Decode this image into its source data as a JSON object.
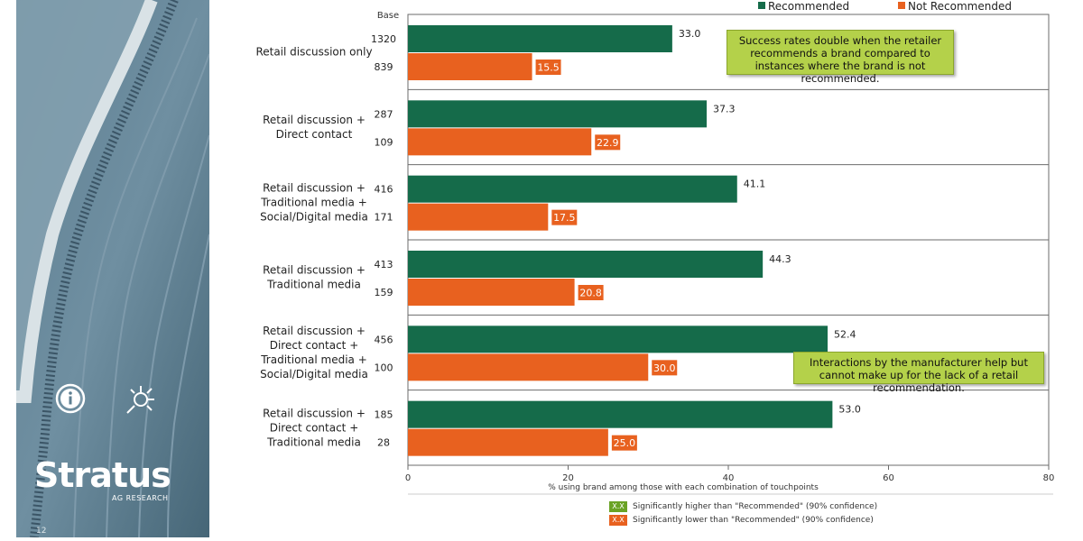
{
  "sidebar": {
    "brand": "Stratus",
    "brand_sub": "AG RESEARCH",
    "page_number": "12",
    "icons": [
      "info-icon",
      "network-icon"
    ]
  },
  "colors": {
    "recommended": "#156b4a",
    "not_recommended": "#e8611f",
    "callout": "#b4d14a"
  },
  "base_header": "Base",
  "callouts": [
    "Success rates double when the retailer recommends a brand compared to instances where the brand is not recommended.",
    "Interactions by the manufacturer help but cannot make up for the lack of a retail recommendation."
  ],
  "significance_legend": [
    {
      "swatch": "X.X",
      "text": "Significantly higher than \"Recommended\" (90% confidence)",
      "color": "#6aa325"
    },
    {
      "swatch": "X.X",
      "text": "Significantly lower than \"Recommended\" (90% confidence)",
      "color": "#e8611f"
    }
  ],
  "chart_data": {
    "type": "bar",
    "orientation": "horizontal",
    "categories": [
      [
        "Retail discussion only"
      ],
      [
        "Retail discussion +",
        "Direct contact"
      ],
      [
        "Retail discussion +",
        "Traditional media +",
        "Social/Digital media"
      ],
      [
        "Retail discussion +",
        "Traditional media"
      ],
      [
        "Retail discussion +",
        "Direct contact +",
        "Traditional media +",
        "Social/Digital media"
      ],
      [
        "Retail discussion +",
        "Direct contact +",
        "Traditional media"
      ]
    ],
    "series": [
      {
        "name": "Recommended",
        "color": "#156b4a",
        "values": [
          33.0,
          37.3,
          41.1,
          44.3,
          52.4,
          53.0
        ],
        "base": [
          "1320",
          "287",
          "416",
          "413",
          "456",
          "185"
        ]
      },
      {
        "name": "Not Recommended",
        "color": "#e8611f",
        "values": [
          15.5,
          22.9,
          17.5,
          20.8,
          30.0,
          25.0
        ],
        "base": [
          "839",
          "109",
          "171",
          "159",
          "100",
          "28"
        ]
      }
    ],
    "xlabel": "% using brand among those with each combination of touchpoints",
    "xlim": [
      0,
      80
    ],
    "xticks": [
      0,
      20,
      40,
      60,
      80
    ],
    "legend_position": "top-right"
  }
}
